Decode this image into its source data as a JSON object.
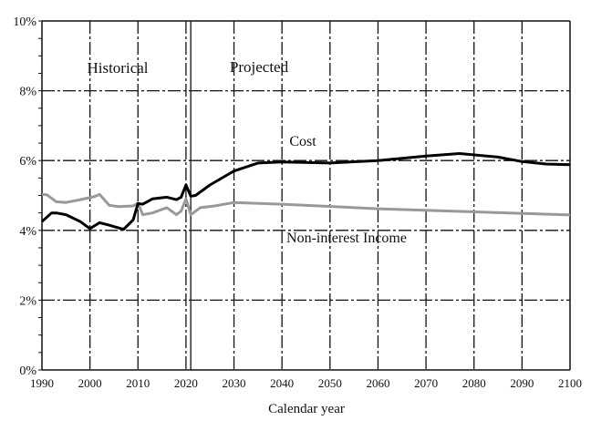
{
  "chart_data": {
    "type": "line",
    "title": "",
    "xlabel": "Calendar year",
    "ylabel": "",
    "xlim": [
      1990,
      2100
    ],
    "ylim": [
      0,
      10
    ],
    "x_ticks": [
      "1990",
      "2000",
      "2010",
      "2020",
      "2030",
      "2040",
      "2050",
      "2060",
      "2070",
      "2080",
      "2090",
      "2100"
    ],
    "y_ticks": [
      "0%",
      "2%",
      "4%",
      "6%",
      "8%",
      "10%"
    ],
    "grid": true,
    "divider_year": 2021,
    "annotations": {
      "historical": "Historical",
      "projected": "Projected"
    },
    "series": [
      {
        "name": "Cost",
        "color": "#000000",
        "points": [
          [
            1990,
            4.25
          ],
          [
            1992,
            4.5
          ],
          [
            1993,
            4.5
          ],
          [
            1995,
            4.45
          ],
          [
            1998,
            4.25
          ],
          [
            2000,
            4.05
          ],
          [
            2002,
            4.22
          ],
          [
            2004,
            4.15
          ],
          [
            2007,
            4.03
          ],
          [
            2009,
            4.3
          ],
          [
            2010,
            4.77
          ],
          [
            2011,
            4.75
          ],
          [
            2013,
            4.9
          ],
          [
            2016,
            4.95
          ],
          [
            2018,
            4.88
          ],
          [
            2019,
            4.95
          ],
          [
            2020,
            5.3
          ],
          [
            2021,
            4.98
          ],
          [
            2022,
            5.0
          ],
          [
            2025,
            5.3
          ],
          [
            2030,
            5.7
          ],
          [
            2035,
            5.93
          ],
          [
            2040,
            5.96
          ],
          [
            2050,
            5.93
          ],
          [
            2060,
            6.0
          ],
          [
            2070,
            6.13
          ],
          [
            2077,
            6.2
          ],
          [
            2085,
            6.1
          ],
          [
            2090,
            5.97
          ],
          [
            2095,
            5.9
          ],
          [
            2100,
            5.88
          ]
        ]
      },
      {
        "name": "Non-interest Income",
        "color": "#999999",
        "points": [
          [
            1990,
            5.03
          ],
          [
            1991,
            5.02
          ],
          [
            1993,
            4.82
          ],
          [
            1995,
            4.8
          ],
          [
            1998,
            4.88
          ],
          [
            2001,
            4.97
          ],
          [
            2002,
            5.03
          ],
          [
            2004,
            4.72
          ],
          [
            2006,
            4.68
          ],
          [
            2009,
            4.7
          ],
          [
            2010,
            4.78
          ],
          [
            2011,
            4.45
          ],
          [
            2013,
            4.5
          ],
          [
            2016,
            4.65
          ],
          [
            2018,
            4.45
          ],
          [
            2019,
            4.55
          ],
          [
            2020,
            4.9
          ],
          [
            2021,
            4.45
          ],
          [
            2023,
            4.65
          ],
          [
            2026,
            4.7
          ],
          [
            2030,
            4.8
          ],
          [
            2040,
            4.75
          ],
          [
            2060,
            4.62
          ],
          [
            2080,
            4.53
          ],
          [
            2100,
            4.44
          ]
        ]
      }
    ]
  }
}
